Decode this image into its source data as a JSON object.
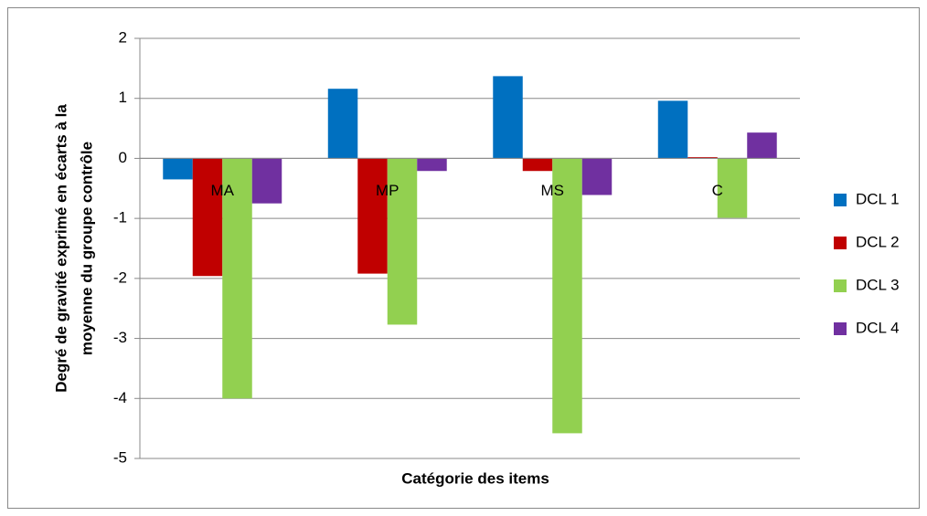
{
  "chart_data": {
    "type": "bar",
    "xlabel": "Catégorie des items",
    "ylabel": [
      "Degré de gravité exprimé en écarts à la",
      "moyenne du groupe contrôle"
    ],
    "categories": [
      "MA",
      "MP",
      "MS",
      "C"
    ],
    "series": [
      {
        "name": "DCL 1",
        "color": "#0070c0",
        "values": [
          -0.35,
          1.16,
          1.37,
          0.96
        ]
      },
      {
        "name": "DCL 2",
        "color": "#c00000",
        "values": [
          -1.96,
          -1.92,
          -0.21,
          0.02
        ]
      },
      {
        "name": "DCL 3",
        "color": "#92d050",
        "values": [
          -4.0,
          -2.77,
          -4.58,
          -0.99
        ]
      },
      {
        "name": "DCL 4",
        "color": "#7030a0",
        "values": [
          -0.75,
          -0.21,
          -0.61,
          0.43
        ]
      }
    ],
    "ylim": [
      -5,
      2
    ],
    "yticks": [
      -5,
      -4,
      -3,
      -2,
      -1,
      0,
      1,
      2
    ],
    "grid": true,
    "legend": "right"
  }
}
